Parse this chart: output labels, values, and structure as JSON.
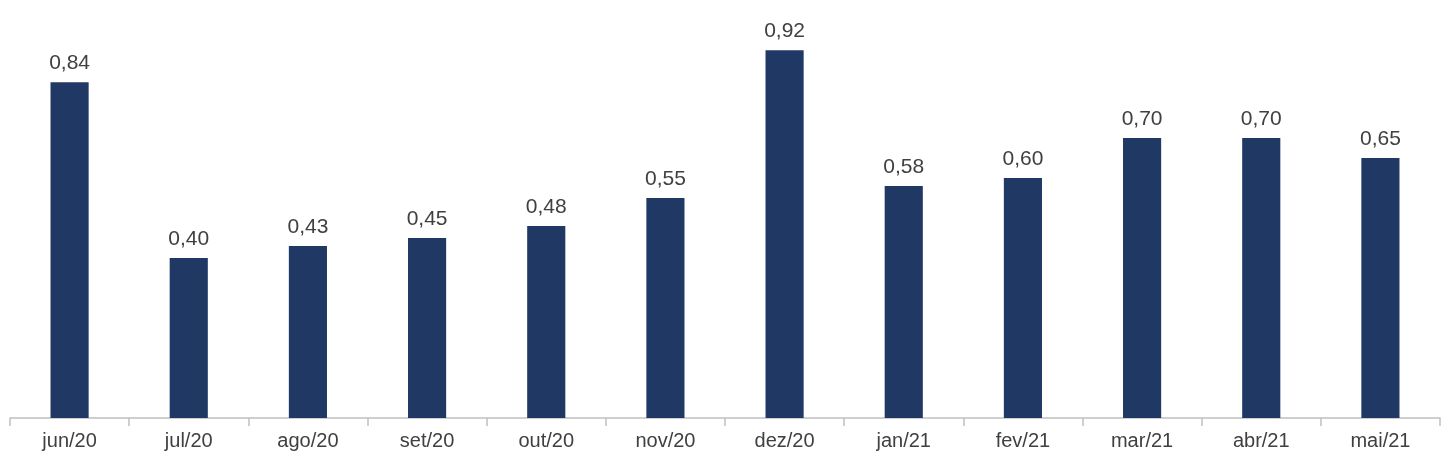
{
  "chart_data": {
    "type": "bar",
    "categories": [
      "jun/20",
      "jul/20",
      "ago/20",
      "set/20",
      "out/20",
      "nov/20",
      "dez/20",
      "jan/21",
      "fev/21",
      "mar/21",
      "abr/21",
      "mai/21"
    ],
    "series": [
      {
        "color": "#1f3864",
        "values": [
          0.84,
          0.4,
          0.43,
          0.45,
          0.48,
          0.55,
          0.92,
          0.58,
          0.6,
          0.7,
          0.7,
          0.65
        ],
        "value_labels": [
          "0,84",
          "0,40",
          "0,43",
          "0,45",
          "0,48",
          "0,55",
          "0,92",
          "0,58",
          "0,60",
          "0,70",
          "0,70",
          "0,65"
        ]
      }
    ]
  }
}
